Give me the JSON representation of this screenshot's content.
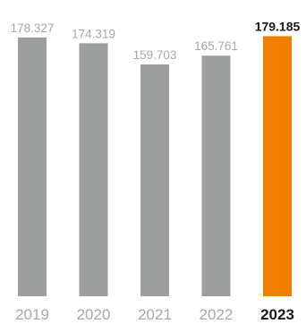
{
  "chart_data": {
    "type": "bar",
    "categories": [
      "2019",
      "2020",
      "2021",
      "2022",
      "2023"
    ],
    "values": [
      178.327,
      174.319,
      159.703,
      165.761,
      179.185
    ],
    "value_labels": [
      "178.327",
      "174.319",
      "159.703",
      "165.761",
      "179.185"
    ],
    "highlight_index": 4,
    "title": "",
    "xlabel": "",
    "ylabel": "",
    "ylim": [
      0,
      185
    ],
    "grid": false,
    "legend": "none",
    "colors": {
      "bar": "#9d9e9e",
      "highlight": "#f07f00",
      "label": "#a7a7a7",
      "highlight_label": "#1a1a1a"
    }
  }
}
